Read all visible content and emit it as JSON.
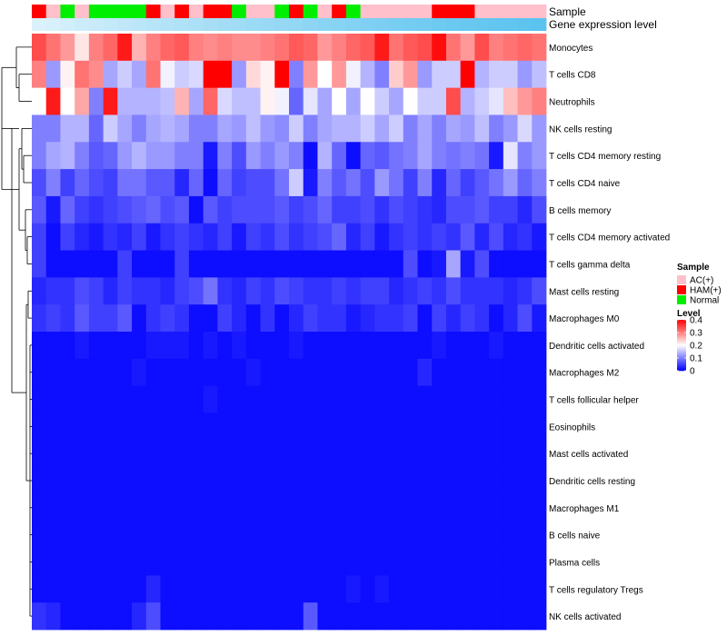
{
  "chart_data": {
    "type": "heatmap",
    "title": "",
    "annotation_rows": [
      "Sample",
      "Gene expression level"
    ],
    "sample_annotation": [
      "H",
      "A",
      "N",
      "A",
      "N",
      "N",
      "N",
      "N",
      "H",
      "A",
      "H",
      "A",
      "H",
      "H",
      "N",
      "A",
      "A",
      "N",
      "H",
      "N",
      "A",
      "H",
      "N",
      "A",
      "A",
      "A",
      "A",
      "A",
      "H",
      "H",
      "H",
      "A",
      "A",
      "A",
      "A",
      "A"
    ],
    "gene_expression_level": [
      0.04,
      0.07,
      0.11,
      0.14,
      0.18,
      0.21,
      0.25,
      0.28,
      0.31,
      0.34,
      0.37,
      0.4,
      0.43,
      0.46,
      0.48,
      0.51,
      0.54,
      0.56,
      0.59,
      0.62,
      0.65,
      0.67,
      0.7,
      0.73,
      0.75,
      0.78,
      0.81,
      0.83,
      0.86,
      0.88,
      0.9,
      0.92,
      0.94,
      0.96,
      0.98,
      1.0
    ],
    "rows": [
      "Monocytes",
      "T cells CD8",
      "Neutrophils",
      "NK cells resting",
      "T cells CD4 memory resting",
      "T cells CD4 naive",
      "B cells memory",
      "T cells CD4 memory activated",
      "T cells gamma delta",
      "Mast cells resting",
      "Macrophages M0",
      "Dendritic cells activated",
      "Macrophages M2",
      "T cells follicular helper",
      "Eosinophils",
      "Mast cells activated",
      "Dendritic cells resting",
      "Macrophages M1",
      "B cells naive",
      "Plasma cells",
      "T cells regulatory  Tregs",
      "NK cells activated"
    ],
    "values": [
      [
        0.34,
        0.31,
        0.28,
        0.22,
        0.3,
        0.32,
        0.38,
        0.26,
        0.3,
        0.32,
        0.33,
        0.3,
        0.29,
        0.3,
        0.29,
        0.29,
        0.3,
        0.31,
        0.33,
        0.32,
        0.28,
        0.3,
        0.32,
        0.33,
        0.38,
        0.31,
        0.33,
        0.34,
        0.39,
        0.31,
        0.28,
        0.34,
        0.3,
        0.31,
        0.32,
        0.31
      ],
      [
        0.3,
        0.12,
        0.21,
        0.31,
        0.29,
        0.13,
        0.16,
        0.13,
        0.31,
        0.19,
        0.16,
        0.17,
        0.4,
        0.4,
        0.12,
        0.23,
        0.21,
        0.4,
        0.1,
        0.28,
        0.2,
        0.28,
        0.19,
        0.14,
        0.1,
        0.24,
        0.28,
        0.12,
        0.16,
        0.16,
        0.4,
        0.14,
        0.16,
        0.16,
        0.12,
        0.15
      ],
      [
        0.2,
        0.38,
        0.2,
        0.27,
        0.1,
        0.38,
        0.14,
        0.14,
        0.14,
        0.15,
        0.26,
        0.13,
        0.32,
        0.17,
        0.15,
        0.15,
        0.21,
        0.19,
        0.08,
        0.18,
        0.13,
        0.2,
        0.13,
        0.2,
        0.16,
        0.13,
        0.2,
        0.16,
        0.16,
        0.34,
        0.14,
        0.16,
        0.18,
        0.25,
        0.28,
        0.3
      ],
      [
        0.1,
        0.1,
        0.14,
        0.14,
        0.08,
        0.16,
        0.13,
        0.1,
        0.13,
        0.14,
        0.13,
        0.1,
        0.1,
        0.13,
        0.12,
        0.15,
        0.12,
        0.11,
        0.16,
        0.1,
        0.13,
        0.14,
        0.14,
        0.16,
        0.13,
        0.16,
        0.1,
        0.13,
        0.1,
        0.13,
        0.12,
        0.15,
        0.1,
        0.12,
        0.17,
        0.12
      ],
      [
        0.1,
        0.13,
        0.14,
        0.1,
        0.07,
        0.08,
        0.12,
        0.14,
        0.12,
        0.12,
        0.1,
        0.1,
        0.02,
        0.1,
        0.06,
        0.12,
        0.1,
        0.12,
        0.1,
        0.01,
        0.14,
        0.08,
        0.01,
        0.08,
        0.07,
        0.09,
        0.1,
        0.13,
        0.1,
        0.09,
        0.1,
        0.09,
        0.02,
        0.18,
        0.1,
        0.12
      ],
      [
        0.06,
        0.1,
        0.05,
        0.08,
        0.06,
        0.05,
        0.09,
        0.09,
        0.07,
        0.07,
        0.03,
        0.08,
        0.01,
        0.08,
        0.05,
        0.06,
        0.06,
        0.09,
        0.16,
        0.02,
        0.1,
        0.07,
        0.09,
        0.06,
        0.12,
        0.09,
        0.05,
        0.1,
        0.03,
        0.08,
        0.05,
        0.07,
        0.09,
        0.12,
        0.08,
        0.1
      ],
      [
        0.07,
        0.02,
        0.08,
        0.05,
        0.04,
        0.05,
        0.06,
        0.07,
        0.08,
        0.06,
        0.07,
        0.01,
        0.07,
        0.05,
        0.06,
        0.06,
        0.06,
        0.07,
        0.05,
        0.06,
        0.08,
        0.05,
        0.05,
        0.06,
        0.04,
        0.06,
        0.05,
        0.04,
        0.03,
        0.06,
        0.06,
        0.07,
        0.05,
        0.05,
        0.03,
        0.06
      ],
      [
        0.05,
        0.01,
        0.05,
        0.03,
        0.02,
        0.04,
        0.03,
        0.05,
        0.02,
        0.04,
        0.05,
        0.04,
        0.03,
        0.05,
        0.02,
        0.05,
        0.04,
        0.06,
        0.04,
        0.05,
        0.06,
        0.08,
        0.03,
        0.05,
        0.02,
        0.04,
        0.05,
        0.04,
        0.05,
        0.04,
        0.07,
        0.03,
        0.06,
        0.03,
        0.04,
        0.02
      ],
      [
        0.05,
        0.01,
        0.01,
        0.01,
        0.01,
        0.01,
        0.05,
        0.01,
        0.01,
        0.01,
        0.05,
        0.01,
        0.01,
        0.01,
        0.01,
        0.01,
        0.01,
        0.01,
        0.01,
        0.01,
        0.01,
        0.01,
        0.01,
        0.01,
        0.01,
        0.01,
        0.06,
        0.01,
        0.02,
        0.13,
        0.02,
        0.06,
        0.01,
        0.01,
        0.01,
        0.01
      ],
      [
        0.03,
        0.04,
        0.04,
        0.06,
        0.05,
        0.03,
        0.05,
        0.04,
        0.04,
        0.03,
        0.05,
        0.06,
        0.09,
        0.04,
        0.03,
        0.05,
        0.04,
        0.06,
        0.05,
        0.04,
        0.04,
        0.05,
        0.04,
        0.05,
        0.05,
        0.03,
        0.04,
        0.05,
        0.04,
        0.06,
        0.04,
        0.04,
        0.04,
        0.03,
        0.04,
        0.06
      ],
      [
        0.04,
        0.05,
        0.04,
        0.07,
        0.05,
        0.05,
        0.07,
        0.01,
        0.04,
        0.05,
        0.04,
        0.01,
        0.01,
        0.05,
        0.03,
        0.01,
        0.04,
        0.01,
        0.03,
        0.05,
        0.04,
        0.04,
        0.02,
        0.03,
        0.04,
        0.04,
        0.05,
        0.01,
        0.05,
        0.03,
        0.05,
        0.04,
        0.01,
        0.03,
        0.06,
        0.02
      ],
      [
        0.01,
        0.01,
        0.01,
        0.02,
        0.01,
        0.01,
        0.01,
        0.01,
        0.02,
        0.02,
        0.02,
        0.01,
        0.02,
        0.01,
        0.02,
        0.01,
        0.01,
        0.01,
        0.02,
        0.01,
        0.01,
        0.01,
        0.01,
        0.01,
        0.01,
        0.01,
        0.01,
        0.01,
        0.02,
        0.01,
        0.01,
        0.01,
        0.02,
        0.01,
        0.01,
        0.01
      ],
      [
        0.01,
        0.01,
        0.01,
        0.01,
        0.01,
        0.01,
        0.01,
        0.02,
        0.01,
        0.01,
        0.01,
        0.01,
        0.01,
        0.01,
        0.01,
        0.02,
        0.01,
        0.01,
        0.01,
        0.01,
        0.01,
        0.01,
        0.01,
        0.01,
        0.01,
        0.01,
        0.01,
        0.03,
        0.01,
        0.01,
        0.01,
        0.01,
        0.01,
        0.01,
        0.01,
        0.01
      ],
      [
        0.01,
        0.01,
        0.01,
        0.01,
        0.01,
        0.01,
        0.01,
        0.01,
        0.01,
        0.01,
        0.01,
        0.01,
        0.02,
        0.01,
        0.01,
        0.01,
        0.01,
        0.01,
        0.01,
        0.01,
        0.01,
        0.01,
        0.01,
        0.01,
        0.01,
        0.01,
        0.01,
        0.01,
        0.01,
        0.01,
        0.01,
        0.01,
        0.01,
        0.01,
        0.01,
        0.01
      ],
      [
        0.01,
        0.01,
        0.01,
        0.01,
        0.01,
        0.01,
        0.01,
        0.01,
        0.01,
        0.01,
        0.01,
        0.01,
        0.01,
        0.01,
        0.01,
        0.01,
        0.01,
        0.01,
        0.01,
        0.01,
        0.01,
        0.01,
        0.01,
        0.01,
        0.01,
        0.01,
        0.01,
        0.01,
        0.01,
        0.01,
        0.01,
        0.01,
        0.01,
        0.01,
        0.01,
        0.01
      ],
      [
        0.01,
        0.01,
        0.01,
        0.01,
        0.01,
        0.01,
        0.01,
        0.01,
        0.01,
        0.01,
        0.01,
        0.01,
        0.01,
        0.01,
        0.01,
        0.01,
        0.01,
        0.01,
        0.01,
        0.01,
        0.01,
        0.01,
        0.01,
        0.01,
        0.01,
        0.01,
        0.01,
        0.01,
        0.01,
        0.01,
        0.01,
        0.01,
        0.01,
        0.01,
        0.01,
        0.01
      ],
      [
        0.01,
        0.01,
        0.01,
        0.01,
        0.01,
        0.01,
        0.01,
        0.01,
        0.01,
        0.01,
        0.01,
        0.01,
        0.01,
        0.01,
        0.01,
        0.01,
        0.01,
        0.01,
        0.01,
        0.01,
        0.01,
        0.01,
        0.01,
        0.01,
        0.01,
        0.01,
        0.01,
        0.01,
        0.01,
        0.01,
        0.01,
        0.01,
        0.01,
        0.01,
        0.01,
        0.01
      ],
      [
        0.01,
        0.01,
        0.01,
        0.01,
        0.01,
        0.01,
        0.01,
        0.01,
        0.01,
        0.01,
        0.01,
        0.01,
        0.01,
        0.01,
        0.01,
        0.01,
        0.01,
        0.01,
        0.01,
        0.01,
        0.01,
        0.01,
        0.01,
        0.01,
        0.01,
        0.01,
        0.01,
        0.01,
        0.01,
        0.01,
        0.01,
        0.01,
        0.01,
        0.01,
        0.01,
        0.01
      ],
      [
        0.01,
        0.01,
        0.01,
        0.01,
        0.01,
        0.01,
        0.01,
        0.01,
        0.01,
        0.01,
        0.01,
        0.01,
        0.01,
        0.01,
        0.01,
        0.01,
        0.01,
        0.01,
        0.01,
        0.01,
        0.01,
        0.01,
        0.01,
        0.01,
        0.01,
        0.01,
        0.01,
        0.01,
        0.01,
        0.01,
        0.01,
        0.01,
        0.01,
        0.01,
        0.01,
        0.01
      ],
      [
        0.01,
        0.01,
        0.01,
        0.01,
        0.01,
        0.01,
        0.01,
        0.01,
        0.01,
        0.01,
        0.01,
        0.01,
        0.01,
        0.01,
        0.01,
        0.01,
        0.01,
        0.01,
        0.01,
        0.01,
        0.01,
        0.01,
        0.01,
        0.01,
        0.01,
        0.01,
        0.01,
        0.01,
        0.01,
        0.01,
        0.01,
        0.01,
        0.01,
        0.01,
        0.01,
        0.01
      ],
      [
        0.01,
        0.01,
        0.01,
        0.01,
        0.01,
        0.01,
        0.01,
        0.01,
        0.03,
        0.01,
        0.01,
        0.01,
        0.01,
        0.01,
        0.01,
        0.01,
        0.01,
        0.01,
        0.01,
        0.01,
        0.01,
        0.01,
        0.02,
        0.01,
        0.02,
        0.01,
        0.01,
        0.01,
        0.01,
        0.01,
        0.01,
        0.01,
        0.01,
        0.01,
        0.01,
        0.01
      ],
      [
        0.04,
        0.03,
        0.01,
        0.01,
        0.01,
        0.01,
        0.01,
        0.03,
        0.06,
        0.01,
        0.01,
        0.01,
        0.01,
        0.01,
        0.01,
        0.01,
        0.01,
        0.01,
        0.01,
        0.07,
        0.01,
        0.01,
        0.01,
        0.01,
        0.01,
        0.01,
        0.01,
        0.01,
        0.01,
        0.01,
        0.01,
        0.01,
        0.01,
        0.01,
        0.01,
        0.01
      ]
    ],
    "legend": {
      "sample_title": "Sample",
      "sample_items": [
        {
          "key": "A",
          "label": "AC(+)",
          "color": "#FFC0CB"
        },
        {
          "key": "H",
          "label": "HAM(+)",
          "color": "#FF0000"
        },
        {
          "key": "N",
          "label": "Normal",
          "color": "#00EE00"
        }
      ],
      "level_title": "Level",
      "level_ticks": [
        0.4,
        0.3,
        0.2,
        0.1,
        0
      ],
      "level_range": [
        0,
        0.4
      ]
    },
    "colors": {
      "low": "#0000FF",
      "mid": "#FFFFFF",
      "high": "#FF0000",
      "expr_light": "#E0F3FB",
      "expr_dark": "#5BC3EF"
    }
  }
}
